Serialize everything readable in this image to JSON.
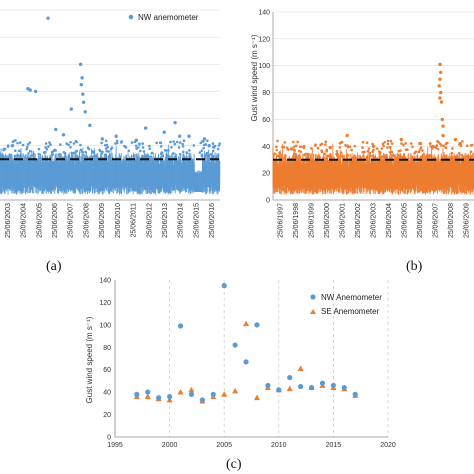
{
  "chart_data": [
    {
      "panel_label": "(a)",
      "type": "scatter",
      "legend": "NW anemometer",
      "legend_position": "top-right",
      "color": "#5b9bd5",
      "ylim": [
        0,
        140
      ],
      "threshold": 30,
      "x_tick_labels": [
        "25/06/2003",
        "25/06/2004",
        "25/06/2005",
        "25/06/2006",
        "25/06/2007",
        "25/06/2008",
        "25/06/2009",
        "25/06/2010",
        "25/06/2011",
        "25/06/2012",
        "25/06/2013",
        "25/06/2014",
        "25/06/2015",
        "25/06/2016"
      ],
      "peaks": [
        {
          "x": 2005.9,
          "y": 134
        },
        {
          "x": 2005.1,
          "y": 80
        },
        {
          "x": 2004.6,
          "y": 82
        },
        {
          "x": 2004.75,
          "y": 81
        },
        {
          "x": 2008.0,
          "y": 100
        },
        {
          "x": 2008.1,
          "y": 90
        },
        {
          "x": 2008.05,
          "y": 85
        },
        {
          "x": 2008.15,
          "y": 78
        },
        {
          "x": 2008.2,
          "y": 72
        },
        {
          "x": 2008.3,
          "y": 65
        },
        {
          "x": 2007.4,
          "y": 67
        },
        {
          "x": 2008.6,
          "y": 55
        },
        {
          "x": 2003.6,
          "y": 40
        },
        {
          "x": 2006.4,
          "y": 52
        },
        {
          "x": 2006.9,
          "y": 48
        },
        {
          "x": 2009.4,
          "y": 45
        },
        {
          "x": 2010.3,
          "y": 47
        },
        {
          "x": 2011.6,
          "y": 44
        },
        {
          "x": 2012.2,
          "y": 53
        },
        {
          "x": 2013.4,
          "y": 50
        },
        {
          "x": 2014.1,
          "y": 57
        },
        {
          "x": 2014.4,
          "y": 47
        },
        {
          "x": 2015.0,
          "y": 47
        },
        {
          "x": 2016.0,
          "y": 45
        },
        {
          "x": 2016.3,
          "y": 40
        },
        {
          "x": 2016.6,
          "y": 39
        }
      ]
    },
    {
      "panel_label": "(b)",
      "type": "scatter",
      "ylabel": "Gust wind speed (m s⁻¹)",
      "color": "#ed7d31",
      "ylim": [
        0,
        140
      ],
      "y_ticks": [
        0,
        20,
        40,
        60,
        80,
        100,
        120,
        140
      ],
      "threshold": 30,
      "x_tick_labels": [
        "25/06/1997",
        "25/06/1998",
        "25/06/1999",
        "25/06/2000",
        "25/06/2001",
        "25/06/2002",
        "25/06/2003",
        "25/06/2004",
        "25/06/2005",
        "25/06/2006",
        "25/06/2007",
        "25/06/2008",
        "25/06/2009"
      ],
      "peaks": [
        {
          "x": 2007.9,
          "y": 101
        },
        {
          "x": 2007.95,
          "y": 95
        },
        {
          "x": 2007.9,
          "y": 90
        },
        {
          "x": 2007.85,
          "y": 85
        },
        {
          "x": 2007.95,
          "y": 80
        },
        {
          "x": 2007.9,
          "y": 76
        },
        {
          "x": 2008.0,
          "y": 73
        },
        {
          "x": 2008.05,
          "y": 60
        },
        {
          "x": 2008.1,
          "y": 55
        },
        {
          "x": 2008.1,
          "y": 48
        },
        {
          "x": 2001.9,
          "y": 48
        },
        {
          "x": 2005.4,
          "y": 45
        },
        {
          "x": 2006.6,
          "y": 42
        },
        {
          "x": 2008.9,
          "y": 45
        },
        {
          "x": 2009.2,
          "y": 42
        },
        {
          "x": 1998.3,
          "y": 38
        },
        {
          "x": 2000.8,
          "y": 39
        },
        {
          "x": 2003.6,
          "y": 40
        }
      ]
    },
    {
      "panel_label": "(c)",
      "type": "scatter",
      "ylabel": "Gust wind speed (m s⁻¹)",
      "xlim": [
        1995,
        2020
      ],
      "ylim": [
        0,
        140
      ],
      "x_ticks": [
        1995,
        2000,
        2005,
        2010,
        2015,
        2020
      ],
      "y_ticks": [
        0,
        20,
        40,
        60,
        80,
        100,
        120,
        140
      ],
      "legend_position": "top-right",
      "series": [
        {
          "name": "NW Anemometer",
          "marker": "circle",
          "color": "#5b9bd5",
          "points": [
            [
              1997,
              38
            ],
            [
              1998,
              40
            ],
            [
              1999,
              35
            ],
            [
              2000,
              36
            ],
            [
              2001,
              99
            ],
            [
              2002,
              38
            ],
            [
              2003,
              33
            ],
            [
              2004,
              38
            ],
            [
              2005,
              135
            ],
            [
              2006,
              82
            ],
            [
              2007,
              67
            ],
            [
              2008,
              100
            ],
            [
              2009,
              46
            ],
            [
              2010,
              42
            ],
            [
              2011,
              53
            ],
            [
              2012,
              45
            ],
            [
              2013,
              44
            ],
            [
              2014,
              48
            ],
            [
              2015,
              46
            ],
            [
              2016,
              44
            ],
            [
              2017,
              38
            ]
          ]
        },
        {
          "name": "SE Anemometer",
          "marker": "triangle",
          "color": "#ed7d31",
          "points": [
            [
              1997,
              36
            ],
            [
              1998,
              36
            ],
            [
              1999,
              34
            ],
            [
              2000,
              33
            ],
            [
              2001,
              40
            ],
            [
              2002,
              42
            ],
            [
              2003,
              32
            ],
            [
              2004,
              36
            ],
            [
              2005,
              38
            ],
            [
              2006,
              41
            ],
            [
              2007,
              101
            ],
            [
              2008,
              35
            ],
            [
              2009,
              44
            ],
            [
              2010,
              42
            ],
            [
              2011,
              43
            ],
            [
              2012,
              61
            ],
            [
              2013,
              44
            ],
            [
              2014,
              46
            ],
            [
              2015,
              44
            ],
            [
              2016,
              43
            ],
            [
              2017,
              37
            ]
          ]
        }
      ]
    }
  ]
}
